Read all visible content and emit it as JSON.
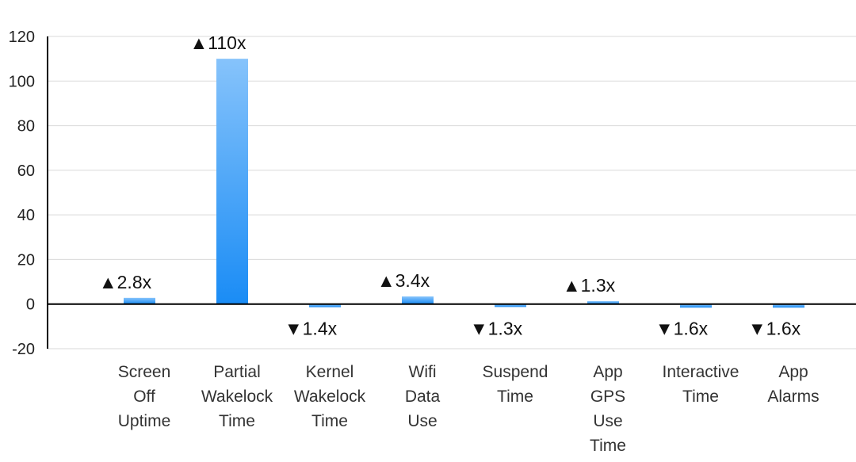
{
  "chart_data": {
    "type": "bar",
    "categories": [
      [
        "Screen",
        "Off",
        "Uptime"
      ],
      [
        "Partial",
        "Wakelock",
        "Time"
      ],
      [
        "Kernel",
        "Wakelock",
        "Time"
      ],
      [
        "Wifi",
        "Data",
        "Use"
      ],
      [
        "Suspend",
        "Time"
      ],
      [
        "App",
        "GPS",
        "Use",
        "Time"
      ],
      [
        "Interactive",
        "Time"
      ],
      [
        "App",
        "Alarms"
      ]
    ],
    "values": [
      2.8,
      110,
      -1.4,
      3.4,
      -1.3,
      1.3,
      -1.6,
      -1.6
    ],
    "data_labels": [
      "▲2.8x",
      "▲110x",
      "▼1.4x",
      "▲3.4x",
      "▼1.3x",
      "▲1.3x",
      "▼1.6x",
      "▼1.6x"
    ],
    "yticks": [
      120,
      100,
      80,
      60,
      40,
      20,
      0,
      -20
    ],
    "ylim": [
      -20,
      120
    ],
    "grid": true,
    "bar_color_top": "#86c3fb",
    "bar_color_bottom": "#1a8cf5",
    "title": "",
    "xlabel": "",
    "ylabel": ""
  }
}
